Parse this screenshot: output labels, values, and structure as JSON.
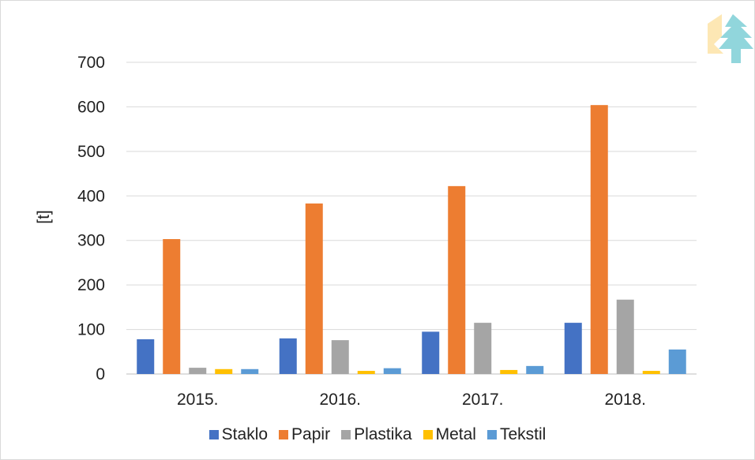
{
  "chart_data": {
    "type": "bar",
    "title": "",
    "xlabel": "",
    "ylabel": "[t]",
    "ylim": [
      0,
      700
    ],
    "yticks": [
      0,
      100,
      200,
      300,
      400,
      500,
      600,
      700
    ],
    "grid": true,
    "legend_position": "bottom",
    "categories": [
      "2015.",
      "2016.",
      "2017.",
      "2018."
    ],
    "series": [
      {
        "name": "Staklo",
        "color": "#4472c4",
        "values": [
          78,
          80,
          95,
          115
        ]
      },
      {
        "name": "Papir",
        "color": "#ed7d31",
        "values": [
          303,
          383,
          422,
          604
        ]
      },
      {
        "name": "Plastika",
        "color": "#a5a5a5",
        "values": [
          14,
          76,
          115,
          167
        ]
      },
      {
        "name": "Metal",
        "color": "#ffc000",
        "values": [
          11,
          7,
          9,
          7
        ]
      },
      {
        "name": "Tekstil",
        "color": "#5b9bd5",
        "values": [
          11,
          13,
          18,
          55
        ]
      }
    ]
  },
  "logo": {
    "icon": "tree-icon",
    "colors": [
      "#fde3a7",
      "#7ecfd6"
    ]
  }
}
